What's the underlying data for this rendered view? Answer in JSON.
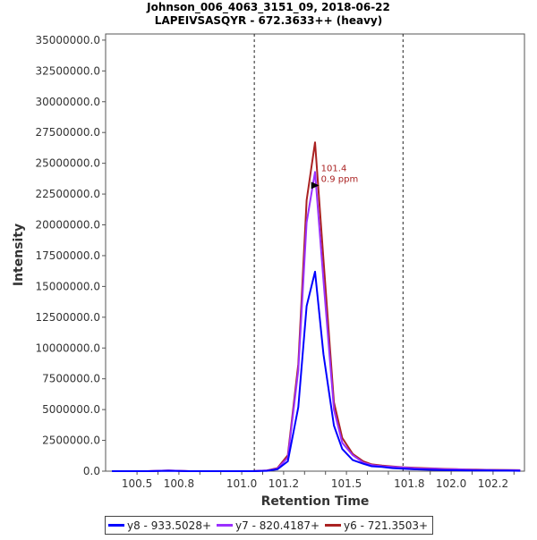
{
  "chart_data": {
    "type": "line",
    "title": "Johnson_006_4063_3151_09, 2018-06-22",
    "subtitle": "LAPEIVSASQYR - 672.3633++ (heavy)",
    "xlabel": "Retention Time",
    "ylabel": "Intensity",
    "xlim": [
      100.35,
      102.35
    ],
    "ylim": [
      0,
      35500000
    ],
    "xticks": [
      100.5,
      100.6,
      100.7,
      100.8,
      100.9,
      101.0,
      101.1,
      101.2,
      101.3,
      101.4,
      101.5,
      101.6,
      101.7,
      101.8,
      101.9,
      102.0,
      102.1,
      102.2,
      102.3
    ],
    "xtick_labels": [
      "100.5",
      "",
      "100.8",
      "",
      "",
      "101.0",
      "",
      "101.2",
      "",
      "",
      "101.5",
      "",
      "",
      "101.8",
      "",
      "102.0",
      "",
      "102.2",
      ""
    ],
    "yticks": [
      0,
      2500000,
      5000000,
      7500000,
      10000000,
      12500000,
      15000000,
      17500000,
      20000000,
      22500000,
      25000000,
      27500000,
      30000000,
      32500000,
      35000000
    ],
    "ytick_labels": [
      "0.0",
      "2500000.0",
      "5000000.0",
      "7500000.0",
      "10000000.0",
      "12500000.0",
      "15000000.0",
      "17500000.0",
      "20000000.0",
      "22500000.0",
      "25000000.0",
      "27500000.0",
      "30000000.0",
      "32500000.0",
      "35000000.0"
    ],
    "grid": false,
    "vlines": [
      101.06,
      101.77
    ],
    "legend_position": "bottom",
    "series": [
      {
        "name": "y8 - 933.5028+",
        "color": "#0000ff",
        "x": [
          100.38,
          100.45,
          100.55,
          100.65,
          100.75,
          100.85,
          100.95,
          101.05,
          101.12,
          101.17,
          101.22,
          101.27,
          101.31,
          101.35,
          101.39,
          101.44,
          101.48,
          101.53,
          101.58,
          101.62,
          101.67,
          101.72,
          101.77,
          101.82,
          101.87,
          101.92,
          101.97,
          102.02,
          102.07,
          102.12,
          102.17,
          102.22,
          102.27,
          102.33
        ],
        "y": [
          0,
          0,
          0,
          30000,
          0,
          0,
          0,
          0,
          30000,
          150000,
          800000,
          5200000,
          13400000,
          16200000,
          9500000,
          3700000,
          1800000,
          900000,
          600000,
          400000,
          350000,
          250000,
          200000,
          150000,
          120000,
          100000,
          80000,
          70000,
          60000,
          50000,
          50000,
          40000,
          40000,
          30000
        ]
      },
      {
        "name": "y7 - 820.4187+",
        "color": "#9b30ff",
        "x": [
          100.38,
          100.45,
          100.55,
          100.65,
          100.75,
          100.85,
          100.95,
          101.05,
          101.12,
          101.17,
          101.22,
          101.27,
          101.31,
          101.35,
          101.39,
          101.44,
          101.48,
          101.53,
          101.58,
          101.62,
          101.67,
          101.72,
          101.77,
          101.82,
          101.87,
          101.92,
          101.97,
          102.02,
          102.07,
          102.12,
          102.17,
          102.22,
          102.27,
          102.33
        ],
        "y": [
          0,
          0,
          0,
          50000,
          0,
          0,
          0,
          0,
          50000,
          200000,
          1100000,
          8200000,
          20200000,
          24300000,
          15500000,
          5000000,
          2300000,
          1300000,
          700000,
          500000,
          400000,
          350000,
          300000,
          250000,
          200000,
          200000,
          150000,
          150000,
          120000,
          100000,
          100000,
          80000,
          80000,
          70000
        ]
      },
      {
        "name": "y6 - 721.3503+",
        "color": "#aa2222",
        "x": [
          100.38,
          100.45,
          100.55,
          100.65,
          100.75,
          100.85,
          100.95,
          101.05,
          101.12,
          101.17,
          101.22,
          101.27,
          101.31,
          101.35,
          101.39,
          101.44,
          101.48,
          101.53,
          101.58,
          101.62,
          101.67,
          101.72,
          101.77,
          101.82,
          101.87,
          101.92,
          101.97,
          102.02,
          102.07,
          102.12,
          102.17,
          102.22,
          102.27,
          102.33
        ],
        "y": [
          0,
          0,
          0,
          60000,
          0,
          0,
          0,
          0,
          60000,
          250000,
          1300000,
          8700000,
          22000000,
          26700000,
          17200000,
          5600000,
          2700000,
          1400000,
          800000,
          550000,
          450000,
          380000,
          320000,
          280000,
          250000,
          220000,
          180000,
          160000,
          140000,
          120000,
          110000,
          100000,
          90000,
          80000
        ]
      }
    ],
    "annotations": [
      {
        "x": 101.37,
        "y": 23200000,
        "lines": [
          "101.4",
          "0.9 ppm"
        ],
        "color": "#aa2222",
        "marker": "triangle"
      }
    ]
  }
}
